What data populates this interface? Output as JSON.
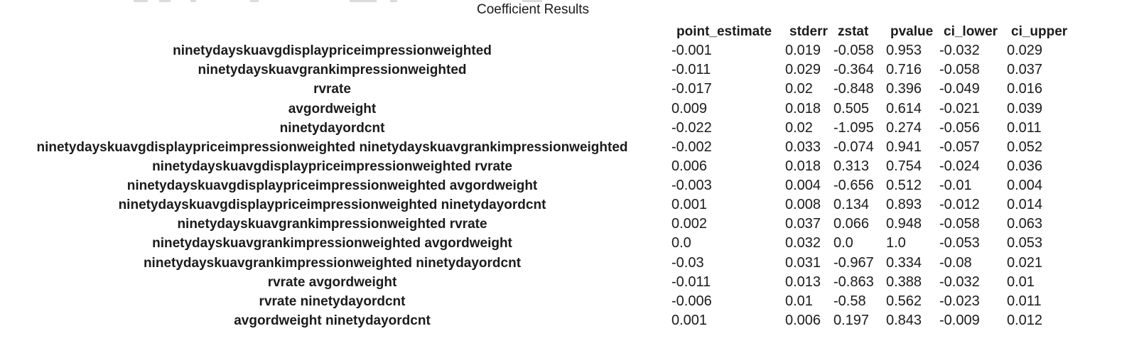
{
  "title": "Coefficient Results",
  "colors": {
    "text": "#1b1b1b",
    "background": "#ffffff"
  },
  "table": {
    "columns": [
      "point_estimate",
      "stderr",
      "zstat",
      "pvalue",
      "ci_lower",
      "ci_upper"
    ],
    "rows": [
      {
        "label": "ninetydayskuavgdisplaypriceimpressionweighted",
        "values": [
          "-0.001",
          "0.019",
          "-0.058",
          "0.953",
          "-0.032",
          "0.029"
        ]
      },
      {
        "label": "ninetydayskuavgrankimpressionweighted",
        "values": [
          "-0.011",
          "0.029",
          "-0.364",
          "0.716",
          "-0.058",
          "0.037"
        ]
      },
      {
        "label": "rvrate",
        "values": [
          "-0.017",
          "0.02",
          "-0.848",
          "0.396",
          "-0.049",
          "0.016"
        ]
      },
      {
        "label": "avgordweight",
        "values": [
          "0.009",
          "0.018",
          "0.505",
          "0.614",
          "-0.021",
          "0.039"
        ]
      },
      {
        "label": "ninetydayordcnt",
        "values": [
          "-0.022",
          "0.02",
          "-1.095",
          "0.274",
          "-0.056",
          "0.011"
        ]
      },
      {
        "label": "ninetydayskuavgdisplaypriceimpressionweighted ninetydayskuavgrankimpressionweighted",
        "values": [
          "-0.002",
          "0.033",
          "-0.074",
          "0.941",
          "-0.057",
          "0.052"
        ]
      },
      {
        "label": "ninetydayskuavgdisplaypriceimpressionweighted rvrate",
        "values": [
          "0.006",
          "0.018",
          "0.313",
          "0.754",
          "-0.024",
          "0.036"
        ]
      },
      {
        "label": "ninetydayskuavgdisplaypriceimpressionweighted avgordweight",
        "values": [
          "-0.003",
          "0.004",
          "-0.656",
          "0.512",
          "-0.01",
          "0.004"
        ]
      },
      {
        "label": "ninetydayskuavgdisplaypriceimpressionweighted ninetydayordcnt",
        "values": [
          "0.001",
          "0.008",
          "0.134",
          "0.893",
          "-0.012",
          "0.014"
        ]
      },
      {
        "label": "ninetydayskuavgrankimpressionweighted rvrate",
        "values": [
          "0.002",
          "0.037",
          "0.066",
          "0.948",
          "-0.058",
          "0.063"
        ]
      },
      {
        "label": "ninetydayskuavgrankimpressionweighted avgordweight",
        "values": [
          "0.0",
          "0.032",
          "0.0",
          "1.0",
          "-0.053",
          "0.053"
        ]
      },
      {
        "label": "ninetydayskuavgrankimpressionweighted ninetydayordcnt",
        "values": [
          "-0.03",
          "0.031",
          "-0.967",
          "0.334",
          "-0.08",
          "0.021"
        ]
      },
      {
        "label": "rvrate avgordweight",
        "values": [
          "-0.011",
          "0.013",
          "-0.863",
          "0.388",
          "-0.032",
          "0.01"
        ]
      },
      {
        "label": "rvrate ninetydayordcnt",
        "values": [
          "-0.006",
          "0.01",
          "-0.58",
          "0.562",
          "-0.023",
          "0.011"
        ]
      },
      {
        "label": "avgordweight ninetydayordcnt",
        "values": [
          "0.001",
          "0.006",
          "0.197",
          "0.843",
          "-0.009",
          "0.012"
        ]
      }
    ]
  },
  "chart_data": {
    "type": "table",
    "title": "Coefficient Results",
    "columns": [
      "point_estimate",
      "stderr",
      "zstat",
      "pvalue",
      "ci_lower",
      "ci_upper"
    ],
    "row_labels": [
      "ninetydayskuavgdisplaypriceimpressionweighted",
      "ninetydayskuavgrankimpressionweighted",
      "rvrate",
      "avgordweight",
      "ninetydayordcnt",
      "ninetydayskuavgdisplaypriceimpressionweighted ninetydayskuavgrankimpressionweighted",
      "ninetydayskuavgdisplaypriceimpressionweighted rvrate",
      "ninetydayskuavgdisplaypriceimpressionweighted avgordweight",
      "ninetydayskuavgdisplaypriceimpressionweighted ninetydayordcnt",
      "ninetydayskuavgrankimpressionweighted rvrate",
      "ninetydayskuavgrankimpressionweighted avgordweight",
      "ninetydayskuavgrankimpressionweighted ninetydayordcnt",
      "rvrate avgordweight",
      "rvrate ninetydayordcnt",
      "avgordweight ninetydayordcnt"
    ],
    "values": [
      [
        -0.001,
        0.019,
        -0.058,
        0.953,
        -0.032,
        0.029
      ],
      [
        -0.011,
        0.029,
        -0.364,
        0.716,
        -0.058,
        0.037
      ],
      [
        -0.017,
        0.02,
        -0.848,
        0.396,
        -0.049,
        0.016
      ],
      [
        0.009,
        0.018,
        0.505,
        0.614,
        -0.021,
        0.039
      ],
      [
        -0.022,
        0.02,
        -1.095,
        0.274,
        -0.056,
        0.011
      ],
      [
        -0.002,
        0.033,
        -0.074,
        0.941,
        -0.057,
        0.052
      ],
      [
        0.006,
        0.018,
        0.313,
        0.754,
        -0.024,
        0.036
      ],
      [
        -0.003,
        0.004,
        -0.656,
        0.512,
        -0.01,
        0.004
      ],
      [
        0.001,
        0.008,
        0.134,
        0.893,
        -0.012,
        0.014
      ],
      [
        0.002,
        0.037,
        0.066,
        0.948,
        -0.058,
        0.063
      ],
      [
        0.0,
        0.032,
        0.0,
        1.0,
        -0.053,
        0.053
      ],
      [
        -0.03,
        0.031,
        -0.967,
        0.334,
        -0.08,
        0.021
      ],
      [
        -0.011,
        0.013,
        -0.863,
        0.388,
        -0.032,
        0.01
      ],
      [
        -0.006,
        0.01,
        -0.58,
        0.562,
        -0.023,
        0.011
      ],
      [
        0.001,
        0.006,
        0.197,
        0.843,
        -0.009,
        0.012
      ]
    ]
  }
}
